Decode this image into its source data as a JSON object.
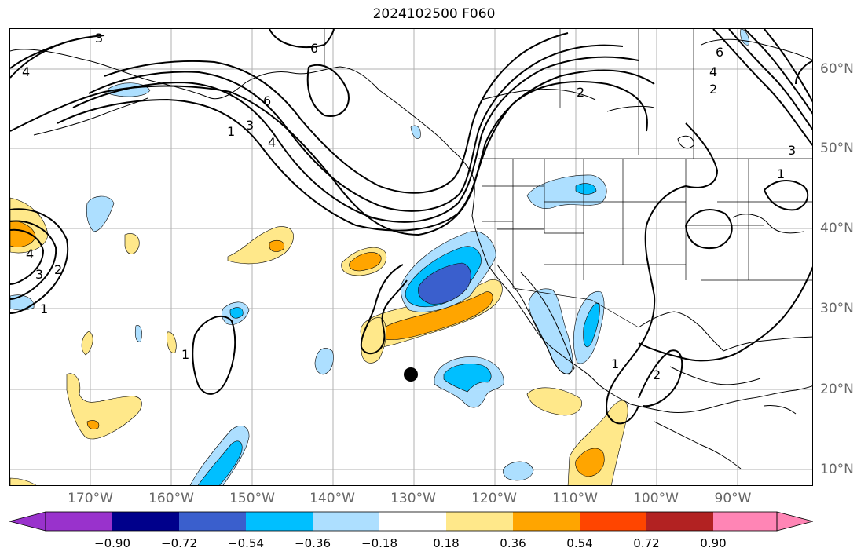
{
  "title": "2024102500 F060",
  "colors": {
    "neg_extreme": "#9932cc",
    "neg_090": "#00008b",
    "neg_072": "#3a5fcd",
    "neg_054": "#00bfff",
    "neg_036": "#addfff",
    "neutral": "#ffffff",
    "pos_018": "#ffe88a",
    "pos_036": "#ffa500",
    "pos_054": "#ff4500",
    "pos_072": "#b22222",
    "pos_extreme": "#ff85b5",
    "contour": "#000000",
    "coast": "#000000",
    "grid": "#b0b0b0"
  },
  "lon_labels": [
    "170°W",
    "160°W",
    "150°W",
    "140°W",
    "130°W",
    "120°W",
    "110°W",
    "100°W",
    "90°W"
  ],
  "lat_labels": [
    "60°N",
    "50°N",
    "40°N",
    "30°N",
    "20°N",
    "10°N"
  ],
  "colorbar_labels": [
    "−0.90",
    "−0.72",
    "−0.54",
    "−0.36",
    "−0.18",
    "0.18",
    "0.36",
    "0.54",
    "0.72",
    "0.90"
  ],
  "contour_labels": [
    "3",
    "4",
    "6",
    "6",
    "1",
    "3",
    "4",
    "2",
    "4",
    "3",
    "2",
    "1",
    "1",
    "6",
    "4",
    "2",
    "1",
    "2",
    "1",
    "3"
  ],
  "marker": "storm-center-dot"
}
